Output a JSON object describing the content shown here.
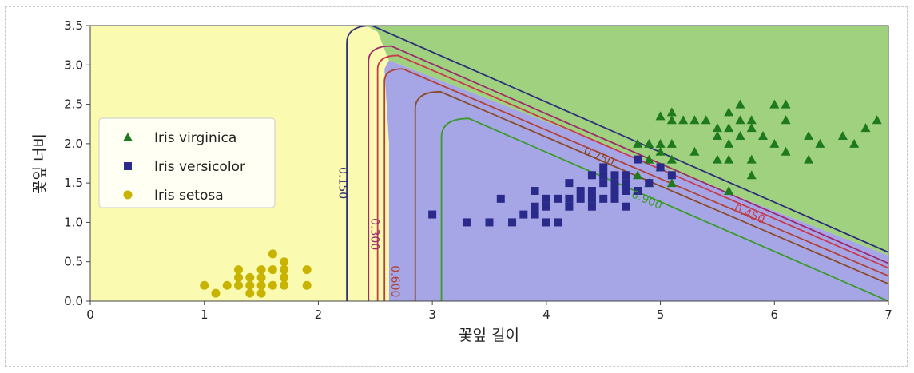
{
  "chart_data": {
    "type": "scatter",
    "xlabel": "꽃잎 길이",
    "ylabel": "꽃잎 너비",
    "xlim": [
      0,
      7
    ],
    "ylim": [
      0,
      3.5
    ],
    "xticks": [
      "0",
      "1",
      "2",
      "3",
      "4",
      "5",
      "6",
      "7"
    ],
    "yticks": [
      "0.0",
      "0.5",
      "1.0",
      "1.5",
      "2.0",
      "2.5",
      "3.0",
      "3.5"
    ],
    "legend_position": "left-center",
    "region_colors": {
      "setosa": "#fafab0",
      "versicolor": "#a6a6e6",
      "virginica": "#9fd17e"
    },
    "series": [
      {
        "name": "Iris virginica",
        "marker": "triangle",
        "color": "#1f7a1f",
        "points": [
          [
            5.1,
            2.4
          ],
          [
            5.0,
            2.35
          ],
          [
            5.1,
            2.3
          ],
          [
            5.2,
            2.3
          ],
          [
            5.3,
            2.3
          ],
          [
            5.4,
            2.3
          ],
          [
            5.6,
            2.4
          ],
          [
            5.7,
            2.5
          ],
          [
            5.8,
            2.3
          ],
          [
            6.0,
            2.5
          ],
          [
            6.1,
            2.5
          ],
          [
            6.1,
            2.3
          ],
          [
            5.7,
            2.3
          ],
          [
            5.6,
            2.2
          ],
          [
            5.5,
            2.2
          ],
          [
            5.8,
            2.2
          ],
          [
            6.3,
            2.1
          ],
          [
            6.8,
            2.2
          ],
          [
            6.9,
            2.3
          ],
          [
            4.8,
            2.0
          ],
          [
            4.9,
            2.0
          ],
          [
            5.0,
            2.0
          ],
          [
            5.1,
            2.0
          ],
          [
            5.6,
            2.0
          ],
          [
            5.7,
            2.1
          ],
          [
            5.9,
            2.1
          ],
          [
            6.0,
            2.0
          ],
          [
            5.3,
            1.9
          ],
          [
            5.5,
            2.1
          ],
          [
            6.4,
            2.0
          ],
          [
            6.7,
            2.0
          ],
          [
            6.6,
            2.1
          ],
          [
            5.0,
            1.9
          ],
          [
            4.9,
            1.8
          ],
          [
            5.1,
            1.8
          ],
          [
            5.5,
            1.8
          ],
          [
            5.6,
            1.8
          ],
          [
            6.1,
            1.9
          ],
          [
            6.3,
            1.8
          ],
          [
            5.8,
            1.8
          ],
          [
            5.0,
            1.7
          ],
          [
            4.8,
            1.6
          ],
          [
            5.8,
            1.6
          ],
          [
            4.9,
            1.5
          ],
          [
            5.1,
            1.5
          ],
          [
            5.6,
            1.4
          ]
        ]
      },
      {
        "name": "Iris versicolor",
        "marker": "square",
        "color": "#2a2a8a",
        "points": [
          [
            3.0,
            1.1
          ],
          [
            3.3,
            1.0
          ],
          [
            3.5,
            1.0
          ],
          [
            3.6,
            1.3
          ],
          [
            3.7,
            1.0
          ],
          [
            3.8,
            1.1
          ],
          [
            3.9,
            1.1
          ],
          [
            3.9,
            1.2
          ],
          [
            3.9,
            1.4
          ],
          [
            4.0,
            1.0
          ],
          [
            4.0,
            1.2
          ],
          [
            4.0,
            1.3
          ],
          [
            4.1,
            1.0
          ],
          [
            4.1,
            1.3
          ],
          [
            4.2,
            1.2
          ],
          [
            4.2,
            1.3
          ],
          [
            4.2,
            1.5
          ],
          [
            4.3,
            1.3
          ],
          [
            4.4,
            1.2
          ],
          [
            4.4,
            1.3
          ],
          [
            4.4,
            1.4
          ],
          [
            4.5,
            1.3
          ],
          [
            4.5,
            1.5
          ],
          [
            4.5,
            1.6
          ],
          [
            4.6,
            1.3
          ],
          [
            4.6,
            1.4
          ],
          [
            4.6,
            1.5
          ],
          [
            4.7,
            1.2
          ],
          [
            4.7,
            1.4
          ],
          [
            4.7,
            1.5
          ],
          [
            4.7,
            1.6
          ],
          [
            4.8,
            1.4
          ],
          [
            4.8,
            1.8
          ],
          [
            4.9,
            1.5
          ],
          [
            5.0,
            1.7
          ],
          [
            5.1,
            1.6
          ],
          [
            4.5,
            1.7
          ],
          [
            4.4,
            1.6
          ],
          [
            4.3,
            1.4
          ],
          [
            4.6,
            1.6
          ]
        ]
      },
      {
        "name": "Iris setosa",
        "marker": "circle",
        "color": "#c8b400",
        "points": [
          [
            1.0,
            0.2
          ],
          [
            1.1,
            0.1
          ],
          [
            1.2,
            0.2
          ],
          [
            1.3,
            0.2
          ],
          [
            1.3,
            0.3
          ],
          [
            1.3,
            0.4
          ],
          [
            1.4,
            0.1
          ],
          [
            1.4,
            0.2
          ],
          [
            1.4,
            0.3
          ],
          [
            1.5,
            0.1
          ],
          [
            1.5,
            0.2
          ],
          [
            1.5,
            0.3
          ],
          [
            1.5,
            0.4
          ],
          [
            1.6,
            0.2
          ],
          [
            1.6,
            0.4
          ],
          [
            1.6,
            0.6
          ],
          [
            1.7,
            0.2
          ],
          [
            1.7,
            0.3
          ],
          [
            1.7,
            0.4
          ],
          [
            1.7,
            0.5
          ],
          [
            1.9,
            0.2
          ],
          [
            1.9,
            0.4
          ]
        ]
      }
    ],
    "contours": [
      {
        "label": "0.150",
        "color": "#2e2e7a"
      },
      {
        "label": "0.300",
        "color": "#9e2a6e"
      },
      {
        "label": "0.450",
        "color": "#c83a4e"
      },
      {
        "label": "0.600",
        "color": "#b0423a"
      },
      {
        "label": "0.750",
        "color": "#8a4a28"
      },
      {
        "label": "0.900",
        "color": "#3a9a2a"
      }
    ]
  }
}
